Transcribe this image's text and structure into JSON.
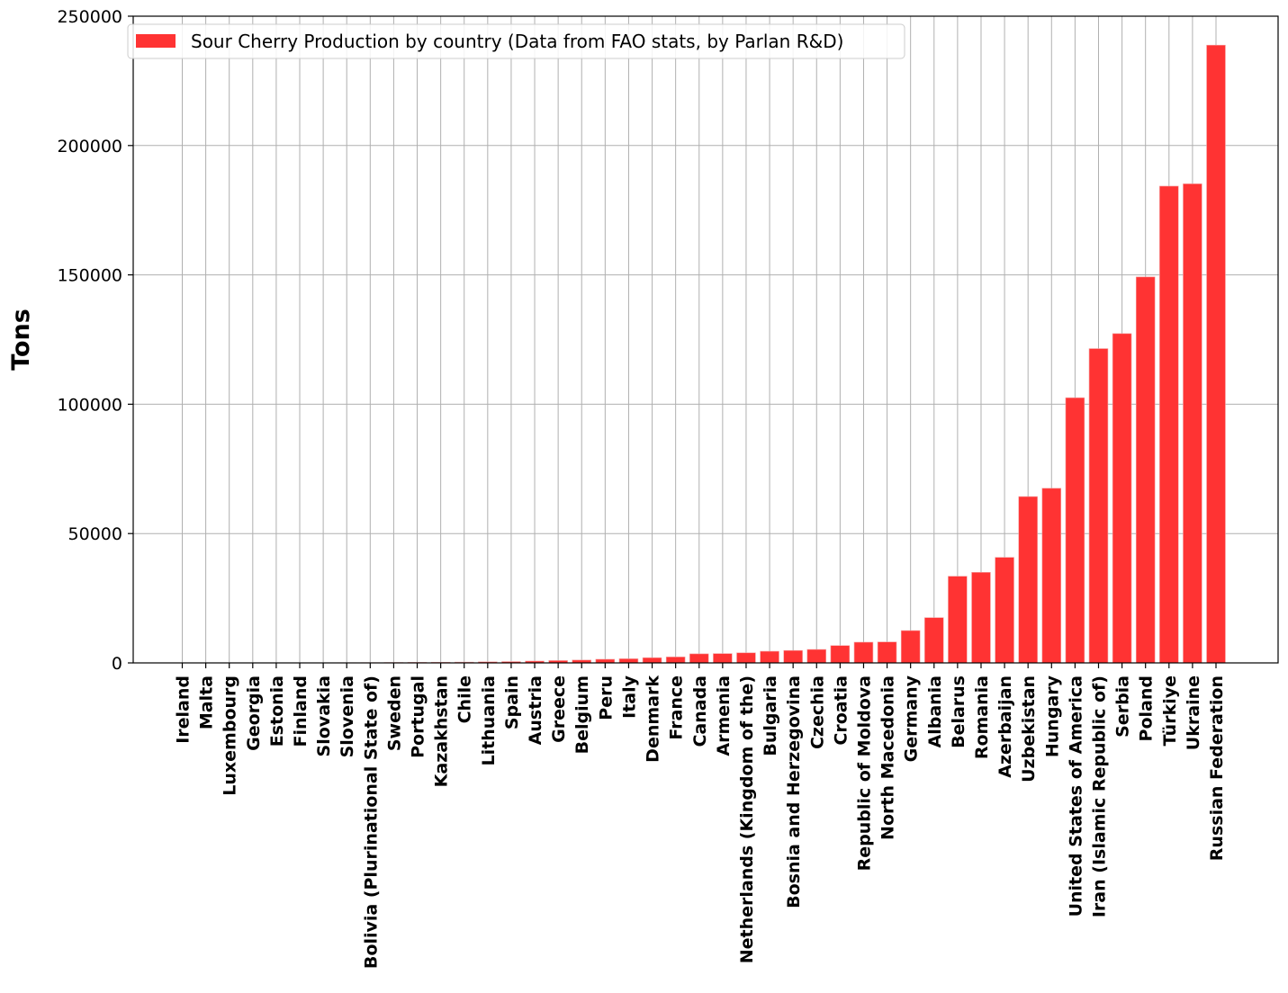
{
  "chart_data": {
    "type": "bar",
    "title": "",
    "xlabel": "",
    "ylabel": "Tons",
    "ylim": [
      0,
      250000
    ],
    "yticks": [
      0,
      50000,
      100000,
      150000,
      200000,
      250000
    ],
    "ytick_labels": [
      "0",
      "50000",
      "100000",
      "150000",
      "200000",
      "250000"
    ],
    "grid": true,
    "legend_position": "top-left",
    "bar_color": "#ff3333",
    "series": [
      {
        "name": "Sour Cherry Production by country (Data from FAO stats, by Parlan R&D)"
      }
    ],
    "categories": [
      "Ireland",
      "Malta",
      "Luxembourg",
      "Georgia",
      "Estonia",
      "Finland",
      "Slovakia",
      "Slovenia",
      "Bolivia (Plurinational State of)",
      "Sweden",
      "Portugal",
      "Kazakhstan",
      "Chile",
      "Lithuania",
      "Spain",
      "Austria",
      "Greece",
      "Belgium",
      "Peru",
      "Italy",
      "Denmark",
      "France",
      "Canada",
      "Armenia",
      "Netherlands (Kingdom of the)",
      "Bulgaria",
      "Bosnia and Herzegovina",
      "Czechia",
      "Croatia",
      "Republic of Moldova",
      "North Macedonia",
      "Germany",
      "Albania",
      "Belarus",
      "Romania",
      "Azerbaijan",
      "Uzbekistan",
      "Hungary",
      "United States of America",
      "Iran (Islamic Republic of)",
      "Serbia",
      "Poland",
      "Türkiye",
      "Ukraine",
      "Russian Federation"
    ],
    "values": [
      10,
      15,
      20,
      30,
      40,
      50,
      60,
      80,
      100,
      150,
      200,
      250,
      300,
      400,
      500,
      700,
      900,
      1100,
      1400,
      1600,
      2000,
      2300,
      3500,
      3600,
      3900,
      4500,
      4800,
      5200,
      6700,
      8000,
      8100,
      12500,
      17500,
      33500,
      35000,
      40800,
      64300,
      67500,
      102500,
      121500,
      127300,
      149200,
      184300,
      185200,
      238800
    ]
  }
}
